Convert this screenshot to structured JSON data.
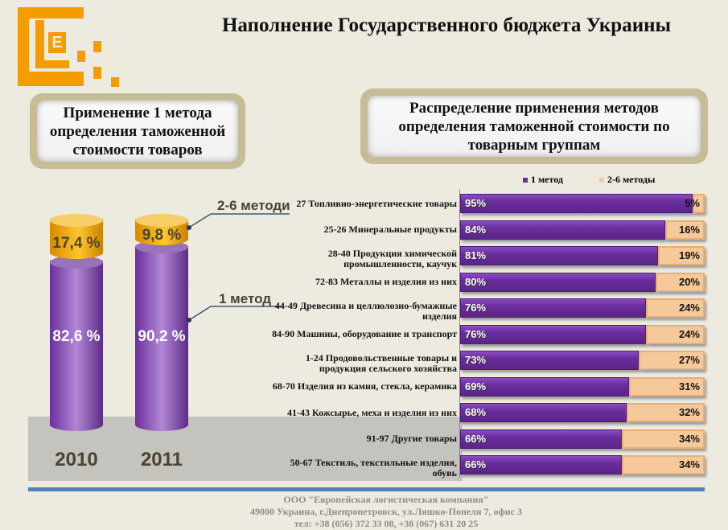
{
  "header": {
    "title": "Наполнение Государственного бюджета Украины",
    "logo_letter": "E"
  },
  "left_panel": {
    "heading": "Применение 1 метода определения таможенной стоимости товаров"
  },
  "right_panel": {
    "heading": "Распределение применения методов определения таможенной стоимости по товарным группам"
  },
  "colors": {
    "method1": "#6a2d9e",
    "methods2_6": "#f6c99a",
    "cyl_top": "#f5a800",
    "accent": "#f59c00",
    "rule": "#4f81bd"
  },
  "chart_data": [
    {
      "type": "bar",
      "subtype": "stacked-cylinder",
      "categories": [
        "2010",
        "2011"
      ],
      "series": [
        {
          "name": "1 метод",
          "values": [
            82.6,
            90.2
          ],
          "labels": [
            "82,6 %",
            "90,2 %"
          ]
        },
        {
          "name": "2-6 методи",
          "values": [
            17.4,
            9.8
          ],
          "labels": [
            "17,4 %",
            "9,8 %"
          ]
        }
      ]
    },
    {
      "type": "bar",
      "subtype": "horizontal-stacked-100",
      "legend": {
        "position": "top",
        "items": [
          "1 метод",
          "2-6 методы"
        ]
      },
      "categories": [
        "27 Топливно-энергетические товары",
        "25-26 Минеральные продукты",
        "28-40 Продукция химической промышленности, каучук",
        "72-83 Металлы и изделия из них",
        "44-49 Древесина и целлюлозно-бумажные изделия",
        "84-90 Машины, оборудование и транспорт",
        "1-24 Продовольственные товары и продукция сельского хозяйства",
        "68-70 Изделия из камня, стекла, керамика",
        "41-43 Кожсырье, меха и изделия из них",
        "91-97 Другие товары",
        "50-67 Текстиль, текстильные изделия, обувь"
      ],
      "series": [
        {
          "name": "1 метод",
          "values": [
            95,
            84,
            81,
            80,
            76,
            76,
            73,
            69,
            68,
            66,
            66
          ]
        },
        {
          "name": "2-6 методы",
          "values": [
            5,
            16,
            19,
            20,
            24,
            24,
            27,
            31,
            32,
            34,
            34
          ]
        }
      ]
    }
  ],
  "footer": {
    "company": "ООО \"Европейская логистическая компания\"",
    "address": "49000 Украина, г.Днепропетровск, ул.Ляшко-Попеля 7, офис 3",
    "phone": "тел: +38 (056) 372 33 08, +38 (067) 631 20 25"
  }
}
